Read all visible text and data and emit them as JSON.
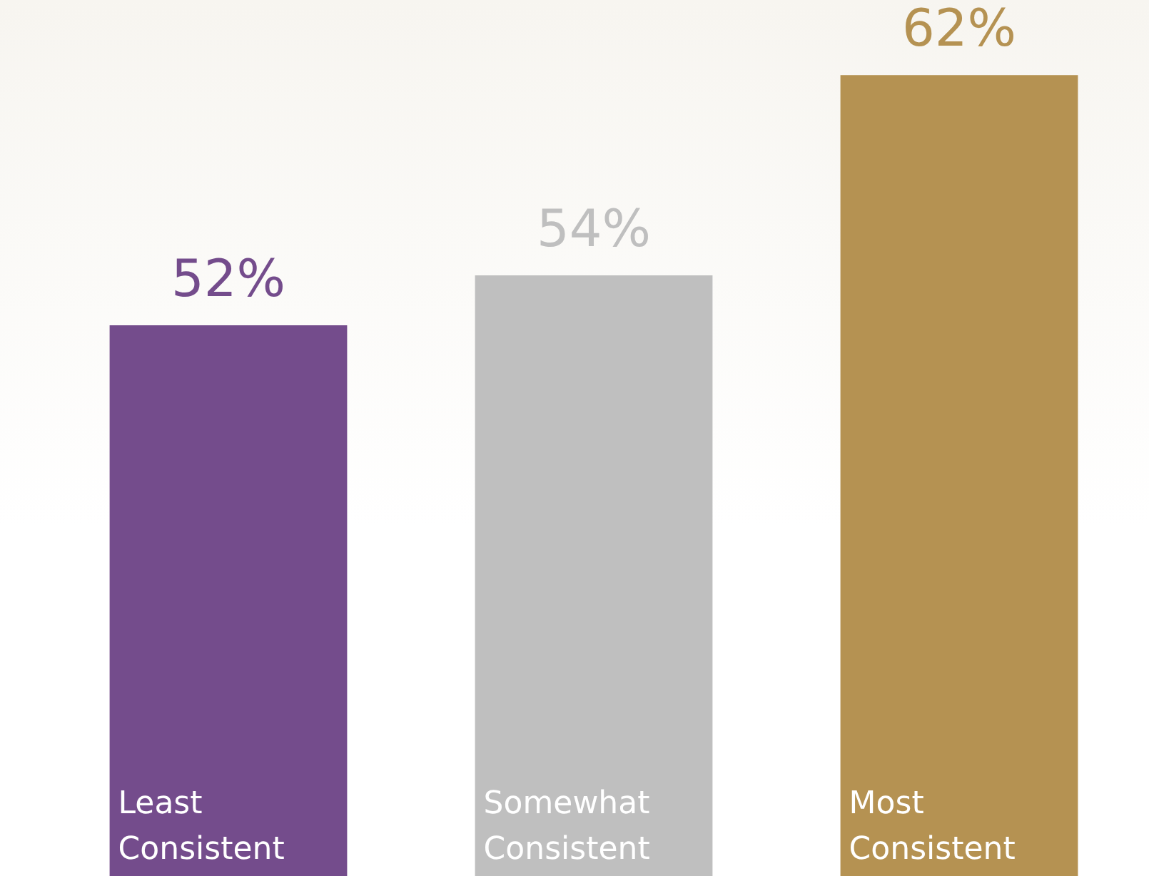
{
  "chart_data": {
    "type": "bar",
    "categories": [
      "Least Consistent",
      "Somewhat Consistent",
      "Most Consistent"
    ],
    "values": [
      52,
      54,
      62
    ],
    "colors": [
      "#744c8c",
      "#bfbfbf",
      "#b59252"
    ],
    "value_labels": [
      "52%",
      "54%",
      "62%"
    ]
  }
}
